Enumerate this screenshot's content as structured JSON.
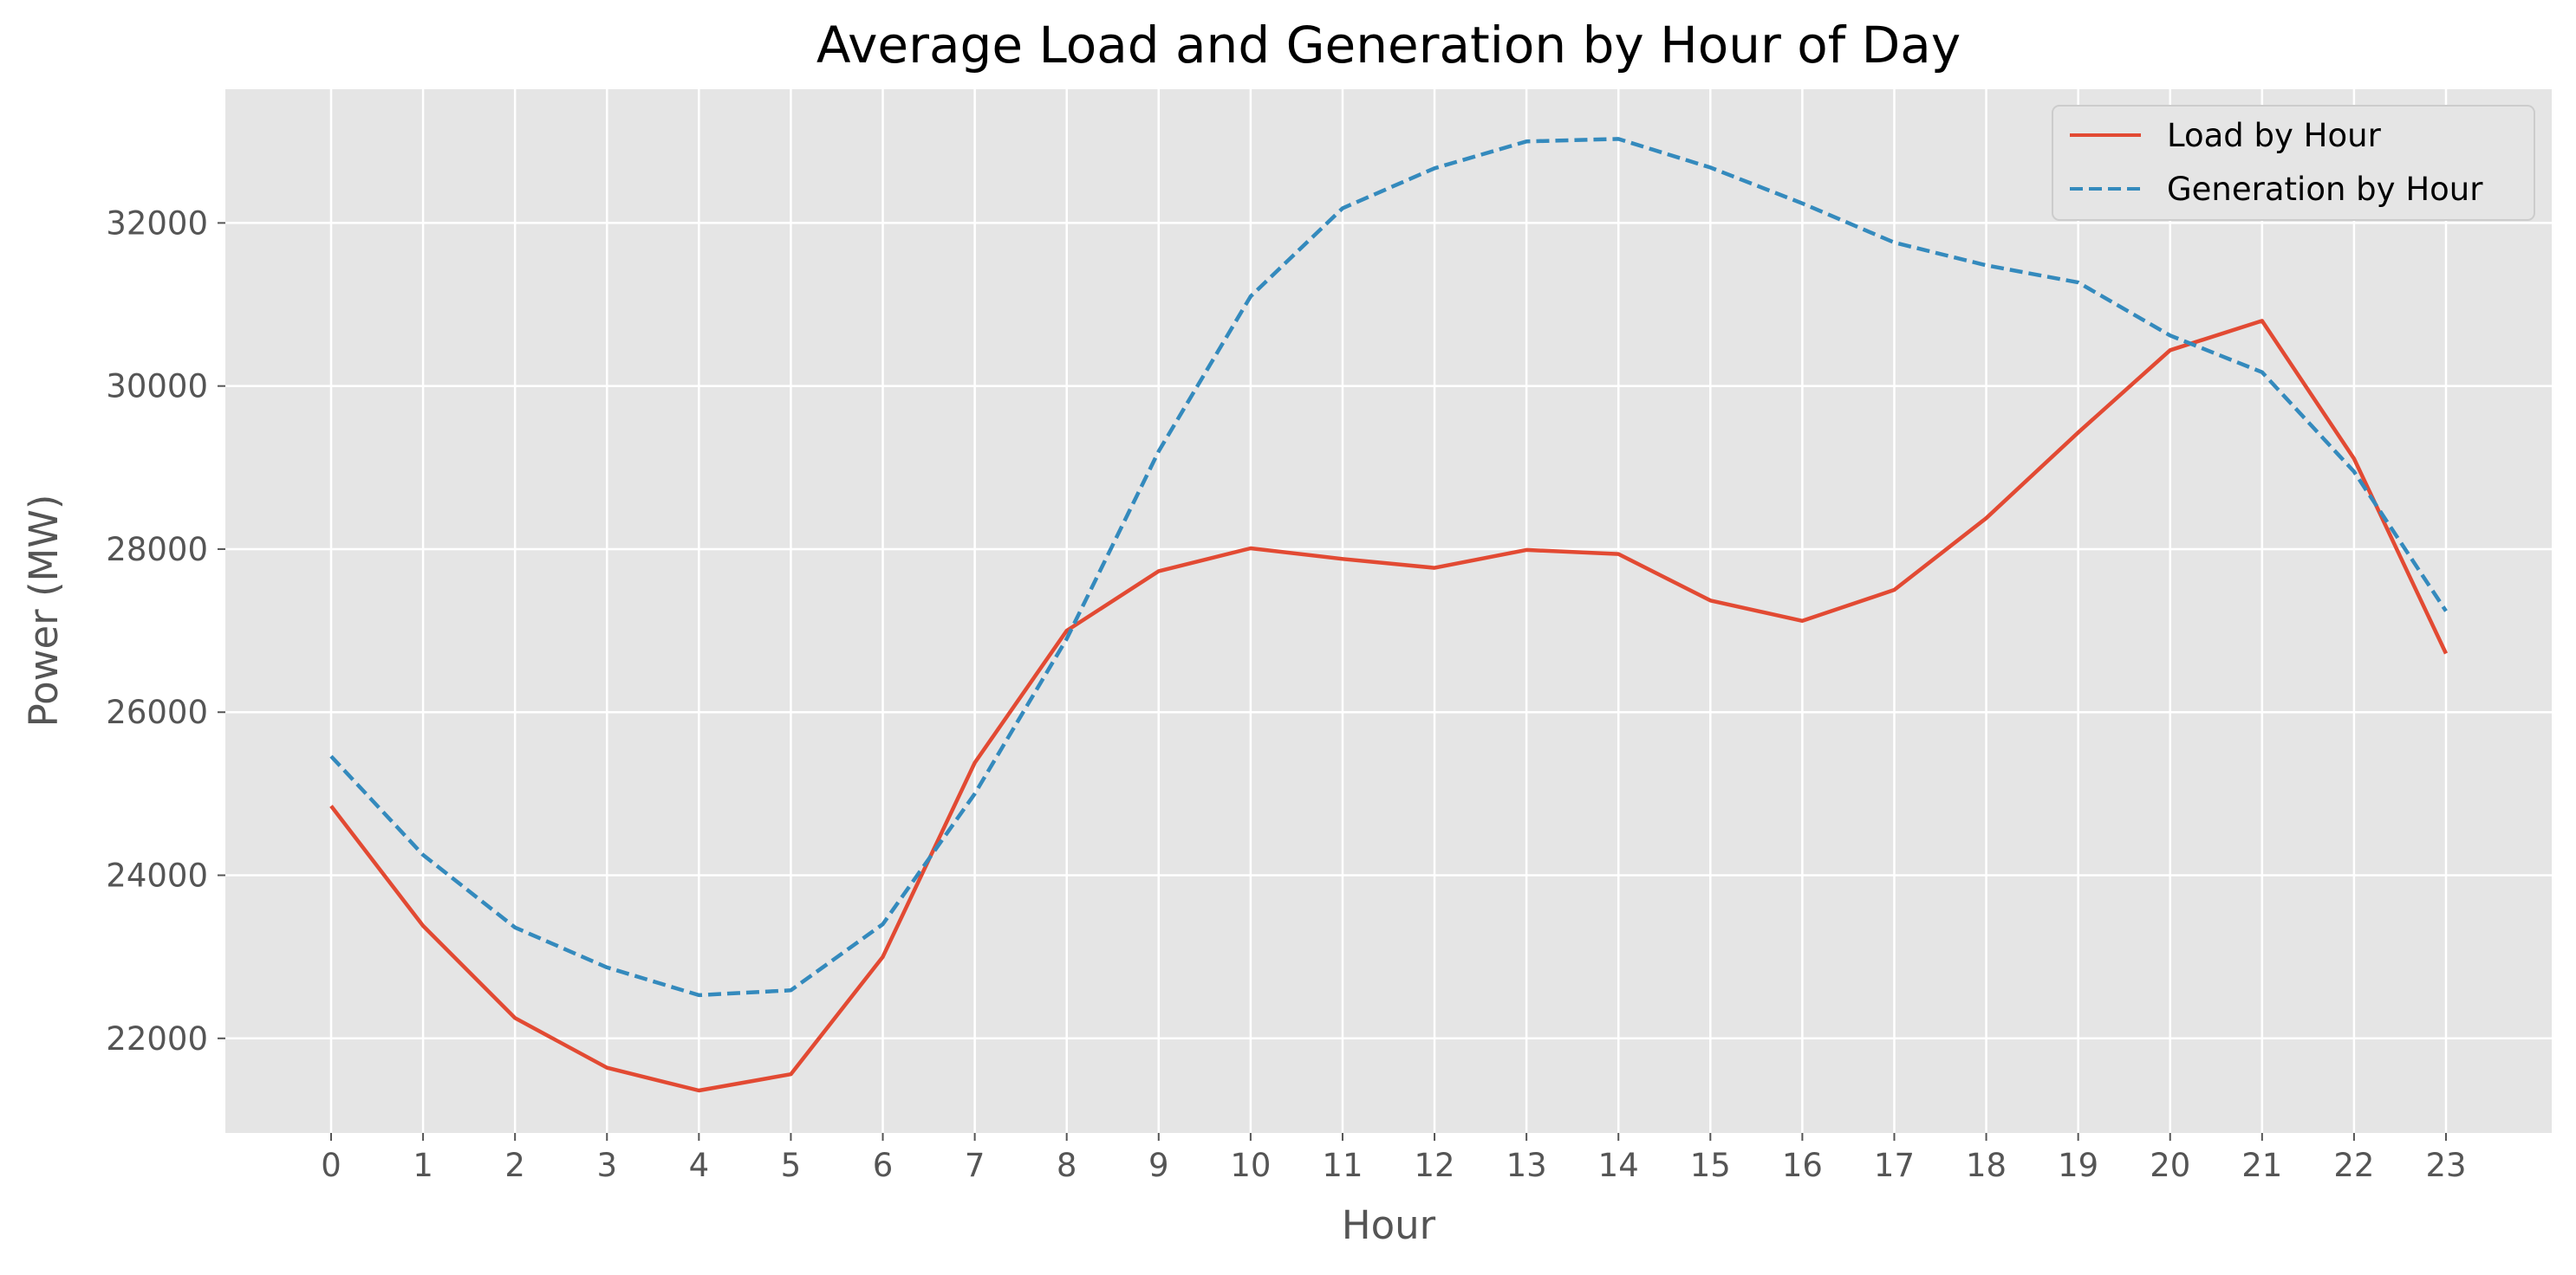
{
  "chart_data": {
    "type": "line",
    "title": "Average Load and Generation by Hour of Day",
    "xlabel": "Hour",
    "ylabel": "Power (MW)",
    "x": [
      0,
      1,
      2,
      3,
      4,
      5,
      6,
      7,
      8,
      9,
      10,
      11,
      12,
      13,
      14,
      15,
      16,
      17,
      18,
      19,
      20,
      21,
      22,
      23
    ],
    "x_tick_labels": [
      "0",
      "1",
      "2",
      "3",
      "4",
      "5",
      "6",
      "7",
      "8",
      "9",
      "10",
      "11",
      "12",
      "13",
      "14",
      "15",
      "16",
      "17",
      "18",
      "19",
      "20",
      "21",
      "22",
      "23"
    ],
    "y_ticks": [
      22000,
      24000,
      26000,
      28000,
      30000,
      32000
    ],
    "y_tick_labels": [
      "22000",
      "24000",
      "26000",
      "28000",
      "30000",
      "32000"
    ],
    "xlim": [
      -1.15,
      24.15
    ],
    "ylim": [
      20840,
      33640
    ],
    "grid": true,
    "legend_position": "top-right",
    "series": [
      {
        "name": "Load by Hour",
        "color": "#E24A33",
        "style": "solid",
        "values": [
          24850,
          23380,
          22250,
          21640,
          21360,
          21560,
          23000,
          25380,
          27000,
          27730,
          28010,
          27880,
          27770,
          27990,
          27940,
          27370,
          27120,
          27500,
          28380,
          29430,
          30440,
          30800,
          29110,
          26720
        ]
      },
      {
        "name": "Generation by Hour",
        "color": "#348ABD",
        "style": "dashed",
        "values": [
          25460,
          24250,
          23360,
          22870,
          22530,
          22590,
          23400,
          25000,
          26900,
          29200,
          31100,
          32180,
          32670,
          33000,
          33030,
          32680,
          32240,
          31760,
          31480,
          31270,
          30620,
          30170,
          28950,
          27240
        ]
      }
    ]
  },
  "colors": {
    "plot_background": "#E5E5E5",
    "grid": "#FFFFFF",
    "axis_text": "#555555"
  }
}
